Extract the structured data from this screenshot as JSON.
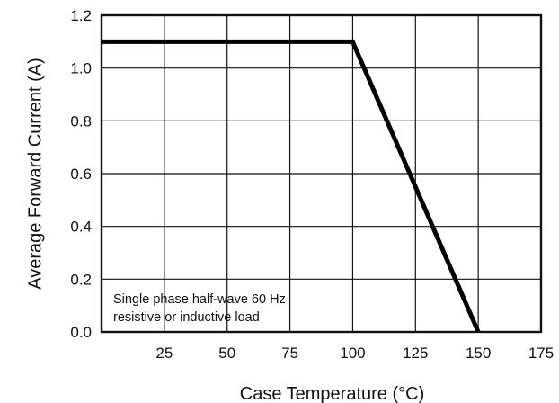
{
  "chart_data": {
    "type": "line",
    "title": "",
    "xlabel": "Case Temperature (°C)",
    "ylabel": "Average Forward Current (A)",
    "xlim": [
      0,
      175
    ],
    "ylim": [
      0,
      1.2
    ],
    "grid": true,
    "x_ticks": [
      25,
      50,
      75,
      100,
      125,
      150,
      175
    ],
    "x_tick_labels": [
      "25",
      "50",
      "75",
      "100",
      "125",
      "150",
      "175"
    ],
    "y_ticks": [
      0,
      0.2,
      0.4,
      0.6,
      0.8,
      1.0,
      1.2
    ],
    "y_tick_labels": [
      "0.0",
      "0.2",
      "0.4",
      "0.6",
      "0.8",
      "1.0",
      "1.2"
    ],
    "series": [
      {
        "x": [
          0,
          100,
          150
        ],
        "y": [
          1.1,
          1.1,
          0
        ]
      }
    ],
    "annotations": [
      "Single phase half-wave 60 Hz",
      "resistive or inductive load"
    ],
    "colors": {
      "line": "#000000",
      "grid": "#111111",
      "axis": "#111111",
      "background": "#ffffff"
    }
  }
}
